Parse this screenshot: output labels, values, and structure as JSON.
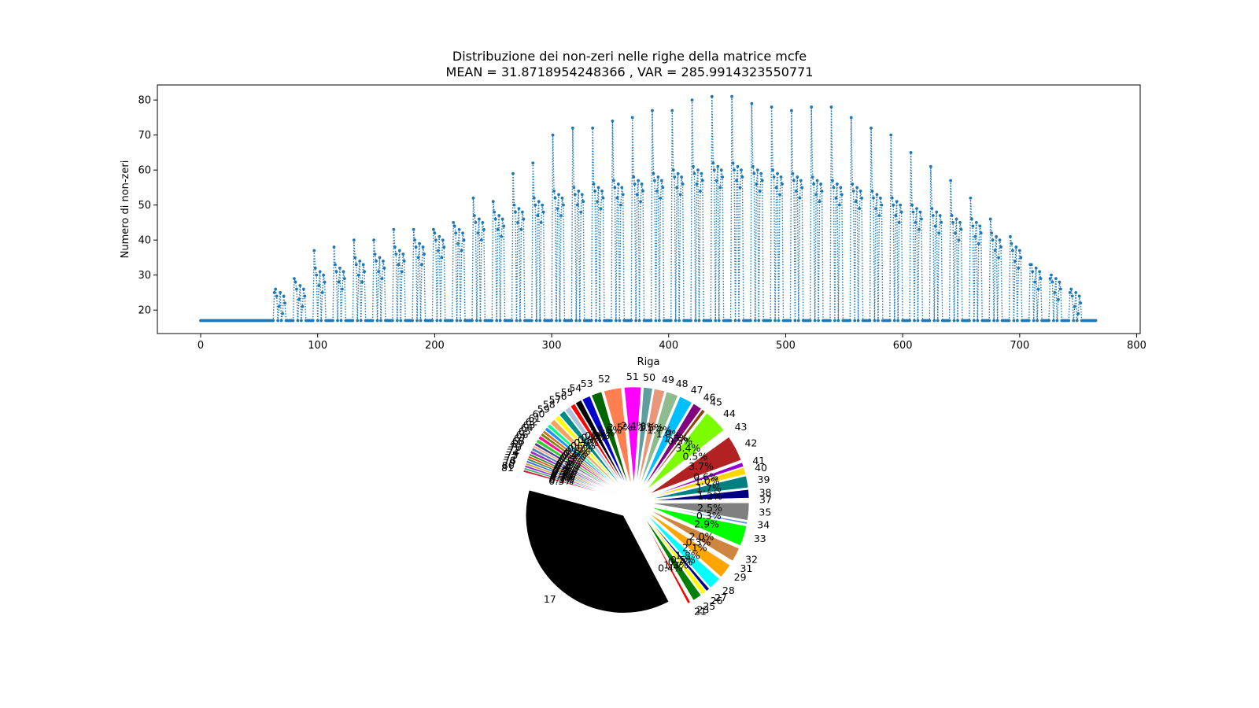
{
  "line_chart": {
    "title_line1": "Distribuzione dei non-zeri nelle righe della matrice mcfe",
    "title_line2": "MEAN = 31.8718954248366 , VAR = 285.9914323550771",
    "xlabel": "Riga",
    "ylabel": "Numero di non-zeri"
  },
  "pie_chart": {
    "top_label": "17"
  },
  "chart_data": [
    {
      "type": "line",
      "title": "Distribuzione dei non-zeri nelle righe della matrice mcfe\nMEAN = 31.8718954248366 , VAR = 285.9914323550771",
      "xlabel": "Riga",
      "ylabel": "Numero di non-zeri",
      "xlim": [
        -37,
        803
      ],
      "ylim": [
        13.3,
        84.3
      ],
      "xticks": [
        0,
        100,
        200,
        300,
        400,
        500,
        600,
        700,
        800
      ],
      "yticks": [
        20,
        30,
        40,
        50,
        60,
        70,
        80
      ],
      "line_style": "dotted",
      "marker": "point",
      "color": "#1f77b4",
      "grid": false,
      "baseline_value": 17,
      "n_rows": 766,
      "band_starts": [
        63,
        80,
        97,
        114,
        131,
        148,
        165,
        182,
        199,
        216,
        233,
        250,
        267,
        284,
        301,
        318,
        335,
        352,
        369,
        386,
        403,
        420,
        437,
        454,
        471,
        488,
        505,
        522,
        539,
        556,
        573,
        590,
        607,
        624,
        641,
        658,
        675,
        692,
        709,
        726,
        743
      ],
      "band_peaks": [
        25,
        29,
        37,
        38,
        40,
        40,
        43,
        43,
        43,
        45,
        52,
        51,
        59,
        62,
        70,
        72,
        72,
        74,
        75,
        77,
        77,
        80,
        81,
        81,
        79,
        78,
        77,
        78,
        78,
        75,
        72,
        70,
        65,
        61,
        57,
        52,
        46,
        41,
        33,
        29,
        25
      ],
      "band_mids": [
        24,
        26,
        30,
        31,
        33,
        34,
        36,
        38,
        40,
        42,
        45,
        46,
        48,
        50,
        52,
        53,
        54,
        55,
        56,
        57,
        58,
        59,
        60,
        60,
        59,
        58,
        57,
        56,
        55,
        54,
        52,
        50,
        48,
        47,
        45,
        44,
        40,
        37,
        31,
        28,
        24
      ]
    },
    {
      "type": "pie",
      "labels": [
        "17",
        "21",
        "23",
        "25",
        "26",
        "27",
        "28",
        "29",
        "31",
        "32",
        "33",
        "34",
        "35",
        "37",
        "38",
        "39",
        "40",
        "41",
        "42",
        "43",
        "44",
        "45",
        "46",
        "47",
        "48",
        "49",
        "50",
        "51",
        "52",
        "53",
        "54",
        "55",
        "56",
        "57",
        "58",
        "59",
        "60",
        "61",
        "62",
        "63",
        "64",
        "65",
        "66",
        "67",
        "68",
        "69",
        "70",
        "72",
        "74",
        "75",
        "77",
        "78",
        "79",
        "80",
        "81"
      ],
      "values": [
        32.0,
        0.4,
        0.3,
        1.3,
        0.7,
        0.5,
        1.8,
        2.1,
        0.3,
        2.0,
        2.9,
        0.3,
        2.5,
        0.3,
        1.2,
        1.7,
        1.0,
        0.6,
        3.7,
        0.5,
        3.4,
        0.5,
        1.3,
        1.9,
        1.7,
        1.5,
        1.3,
        2.4,
        2.5,
        1.5,
        1.2,
        0.9,
        0.7,
        0.8,
        0.9,
        0.7,
        0.8,
        0.5,
        0.5,
        0.4,
        0.4,
        0.5,
        0.5,
        0.4,
        0.3,
        0.4,
        0.4,
        0.3,
        0.3,
        0.3,
        0.3,
        0.3,
        0.3,
        0.3,
        0.3
      ],
      "pct_labels": [
        "",
        "0.4%",
        "",
        "1.3%",
        "0.7%",
        "0.5%",
        "1.8%",
        "2.1%",
        "0.3%",
        "2.0%",
        "2.9%",
        "0.3%",
        "2.5%",
        "",
        "1.2%",
        "1.7%",
        "1.0%",
        "0.6%",
        "3.7%",
        "0.5%",
        "3.4%",
        "0.5%",
        "1.3%",
        "1.9%",
        "1.7%",
        "1.5%",
        "1.3%",
        "2.4%",
        "2.5%",
        "1.5%",
        "1.2%",
        "0.9%",
        "0.7%",
        "0.8%",
        "0.9%",
        "0.7%",
        "0.8%",
        "0.5%",
        "0.5%",
        "0.4%",
        "0.4%",
        "0.5%",
        "0.5%",
        "0.4%",
        "0.3%",
        "0.4%",
        "0.4%",
        "0.3%",
        "0.3%",
        "0.3%",
        "0.3%",
        "0.3%",
        "0.3%",
        "0.3%",
        "0.3%"
      ],
      "colors": [
        "#000000",
        "#ff0000",
        "#ffffff",
        "#008000",
        "#ffff00",
        "#00008b",
        "#00ffff",
        "#ffa500",
        "#ffffff",
        "#cd853f",
        "#00ff00",
        "#6495ed",
        "#808080",
        "#ffffff",
        "#000080",
        "#008080",
        "#ffd700",
        "#9400d3",
        "#b22222",
        "#ffffff",
        "#7cfc00",
        "#8b4513",
        "#800080",
        "#00bfff",
        "#8fbc8f",
        "#e9967a",
        "#5f9ea0",
        "#ff00ff",
        "#ff7f50",
        "#006400",
        "#0000cd",
        "#000000",
        "#ff0000",
        "#b0c4de",
        "#008b8b",
        "#ffff00",
        "#f4a460",
        "#00ff7f",
        "#1e90ff",
        "#d2691e",
        "#808000",
        "#ff1493",
        "#32cd32",
        "#483d8b",
        "#ffa07a",
        "#4682b4",
        "#9932cc",
        "#228b22",
        "#ff4500",
        "#2e8b57",
        "#4169e1",
        "#daa520",
        "#8a2be2",
        "#3cb371",
        "#dc143c"
      ],
      "explode": "all wedges exploded",
      "start_angle": "upper-left"
    }
  ]
}
